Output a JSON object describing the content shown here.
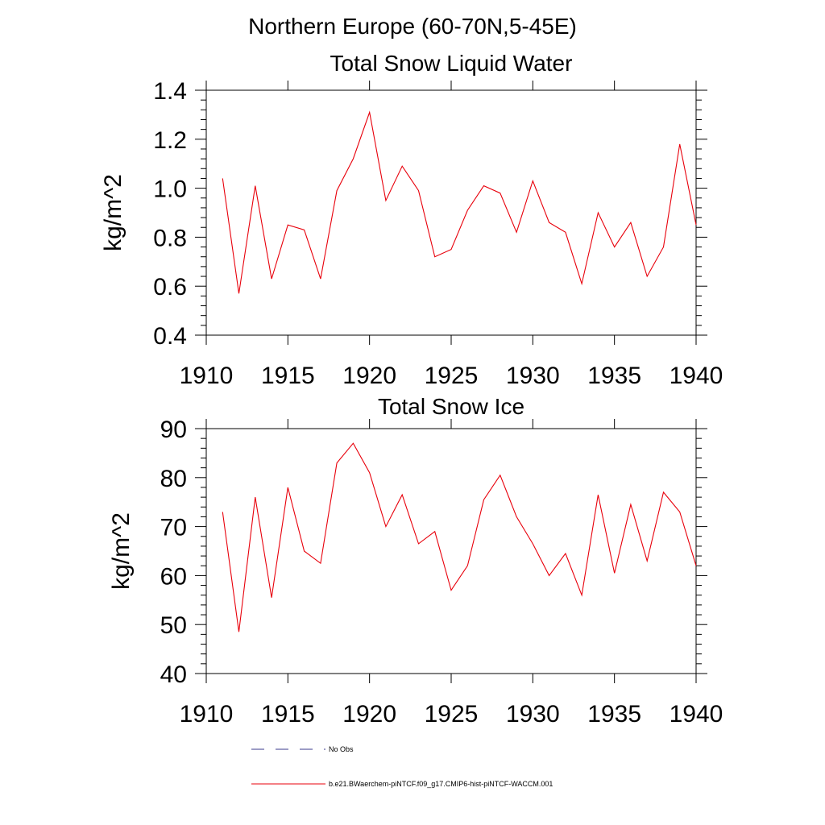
{
  "figure": {
    "suptitle": "Northern Europe (60-70N,5-45E)"
  },
  "colors": {
    "series_line": "#e8000b",
    "obs_line": "#3a3a8c",
    "axis": "#000000"
  },
  "chart_data": [
    {
      "type": "line",
      "title": "Total Snow Liquid Water",
      "xlabel": "",
      "ylabel": "kg/m^2",
      "xlim": [
        1910,
        1940
      ],
      "ylim": [
        0.4,
        1.4
      ],
      "xticks": [
        1910,
        1915,
        1920,
        1925,
        1930,
        1935,
        1940
      ],
      "yticks": [
        0.4,
        0.6,
        0.8,
        1.0,
        1.2,
        1.4
      ],
      "ytick_labels": [
        "0.4",
        "0.6",
        "0.8",
        "1.0",
        "1.2",
        "1.4"
      ],
      "grid": false,
      "x": [
        1911,
        1912,
        1913,
        1914,
        1915,
        1916,
        1917,
        1918,
        1919,
        1920,
        1921,
        1922,
        1923,
        1924,
        1925,
        1926,
        1927,
        1928,
        1929,
        1930,
        1931,
        1932,
        1933,
        1934,
        1935,
        1936,
        1937,
        1938,
        1939,
        1940
      ],
      "series": [
        {
          "name": "b.e21.BWaerchem-piNTCF.f09_g17.CMIP6-hist-piNTCF-WACCM.001",
          "values": [
            1.04,
            0.57,
            1.01,
            0.63,
            0.85,
            0.83,
            0.63,
            0.99,
            1.12,
            1.31,
            0.95,
            1.09,
            0.99,
            0.72,
            0.75,
            0.91,
            1.01,
            0.98,
            0.82,
            1.03,
            0.86,
            0.82,
            0.61,
            0.9,
            0.76,
            0.86,
            0.64,
            0.76,
            1.18,
            0.85
          ]
        }
      ]
    },
    {
      "type": "line",
      "title": "Total Snow Ice",
      "xlabel": "",
      "ylabel": "kg/m^2",
      "xlim": [
        1910,
        1940
      ],
      "ylim": [
        40,
        90
      ],
      "xticks": [
        1910,
        1915,
        1920,
        1925,
        1930,
        1935,
        1940
      ],
      "yticks": [
        40,
        50,
        60,
        70,
        80,
        90
      ],
      "ytick_labels": [
        "40",
        "50",
        "60",
        "70",
        "80",
        "90"
      ],
      "grid": false,
      "x": [
        1911,
        1912,
        1913,
        1914,
        1915,
        1916,
        1917,
        1918,
        1919,
        1920,
        1921,
        1922,
        1923,
        1924,
        1925,
        1926,
        1927,
        1928,
        1929,
        1930,
        1931,
        1932,
        1933,
        1934,
        1935,
        1936,
        1937,
        1938,
        1939,
        1940
      ],
      "series": [
        {
          "name": "b.e21.BWaerchem-piNTCF.f09_g17.CMIP6-hist-piNTCF-WACCM.001",
          "values": [
            73,
            48.5,
            76,
            55.5,
            78,
            65,
            62.5,
            83,
            87,
            81,
            70,
            76.5,
            66.5,
            69,
            57,
            62,
            75.5,
            80.5,
            72,
            66.5,
            60,
            64.5,
            56,
            76.5,
            60.5,
            74.5,
            63,
            77,
            73,
            62
          ]
        }
      ]
    }
  ],
  "legend": {
    "placement": "bottom-left",
    "entries": [
      {
        "label": "No Obs",
        "style": "dashed"
      },
      {
        "label": "b.e21.BWaerchem-piNTCF.f09_g17.CMIP6-hist-piNTCF-WACCM.001",
        "style": "solid"
      }
    ]
  }
}
